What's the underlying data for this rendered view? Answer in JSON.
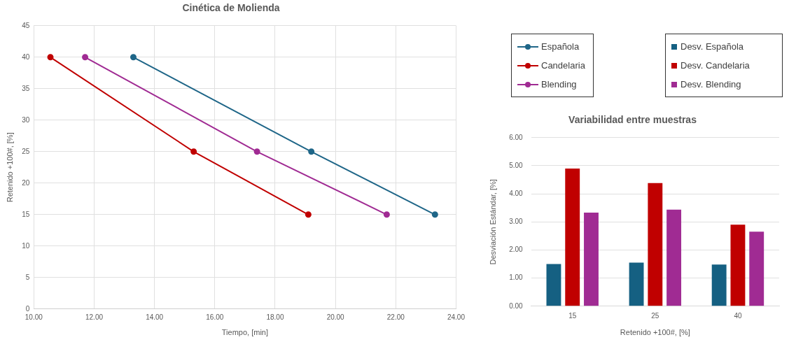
{
  "chart_data": [
    {
      "type": "line",
      "title": "Cinética de Molienda",
      "xlabel": "Tiempo, [min]",
      "ylabel": "Retenido +100#, [%]",
      "series": [
        {
          "name": "Española",
          "color": "#1f6688",
          "x": [
            13.3,
            19.2,
            23.3
          ],
          "values": [
            40,
            25,
            15
          ]
        },
        {
          "name": "Candelaria",
          "color": "#c00000",
          "x": [
            10.55,
            15.3,
            19.1
          ],
          "values": [
            40,
            25,
            15
          ]
        },
        {
          "name": "Blending",
          "color": "#a02b93",
          "x": [
            11.7,
            17.4,
            21.7
          ],
          "values": [
            40,
            25,
            15
          ]
        }
      ],
      "xlim": [
        10,
        24
      ],
      "xticks": [
        {
          "value": 10,
          "label": "10.00"
        },
        {
          "value": 12,
          "label": "12.00"
        },
        {
          "value": 14,
          "label": "14.00"
        },
        {
          "value": 16,
          "label": "16.00"
        },
        {
          "value": 18,
          "label": "18.00"
        },
        {
          "value": 20,
          "label": "20.00"
        },
        {
          "value": 22,
          "label": "22.00"
        },
        {
          "value": 24,
          "label": "24.00"
        }
      ],
      "ylim": [
        0,
        45
      ],
      "yticks": [
        0,
        5,
        10,
        15,
        20,
        25,
        30,
        35,
        40,
        45
      ],
      "grid": true,
      "legend": "right",
      "marker": "circle",
      "line_style": "solid"
    },
    {
      "type": "bar",
      "title": "Variabilidad entre muestras",
      "xlabel": "Retenido +100#, [%]",
      "ylabel": "Desviación Estándar, [%]",
      "categories": [
        "15",
        "25",
        "40"
      ],
      "series": [
        {
          "name": "Desv. Española",
          "color": "#156082",
          "values": [
            1.5,
            1.55,
            1.48
          ]
        },
        {
          "name": "Desv. Candelaria",
          "color": "#c00000",
          "values": [
            4.9,
            4.38,
            2.9
          ]
        },
        {
          "name": "Desv. Blending",
          "color": "#a02b93",
          "values": [
            3.33,
            3.44,
            2.65
          ]
        }
      ],
      "ylim": [
        0,
        6
      ],
      "yticks": [
        {
          "value": 0,
          "label": "0.00"
        },
        {
          "value": 1,
          "label": "1.00"
        },
        {
          "value": 2,
          "label": "2.00"
        },
        {
          "value": 3,
          "label": "3.00"
        },
        {
          "value": 4,
          "label": "4.00"
        },
        {
          "value": 5,
          "label": "5.00"
        },
        {
          "value": 6,
          "label": "6.00"
        }
      ],
      "grid": "y",
      "legend": "top"
    }
  ]
}
